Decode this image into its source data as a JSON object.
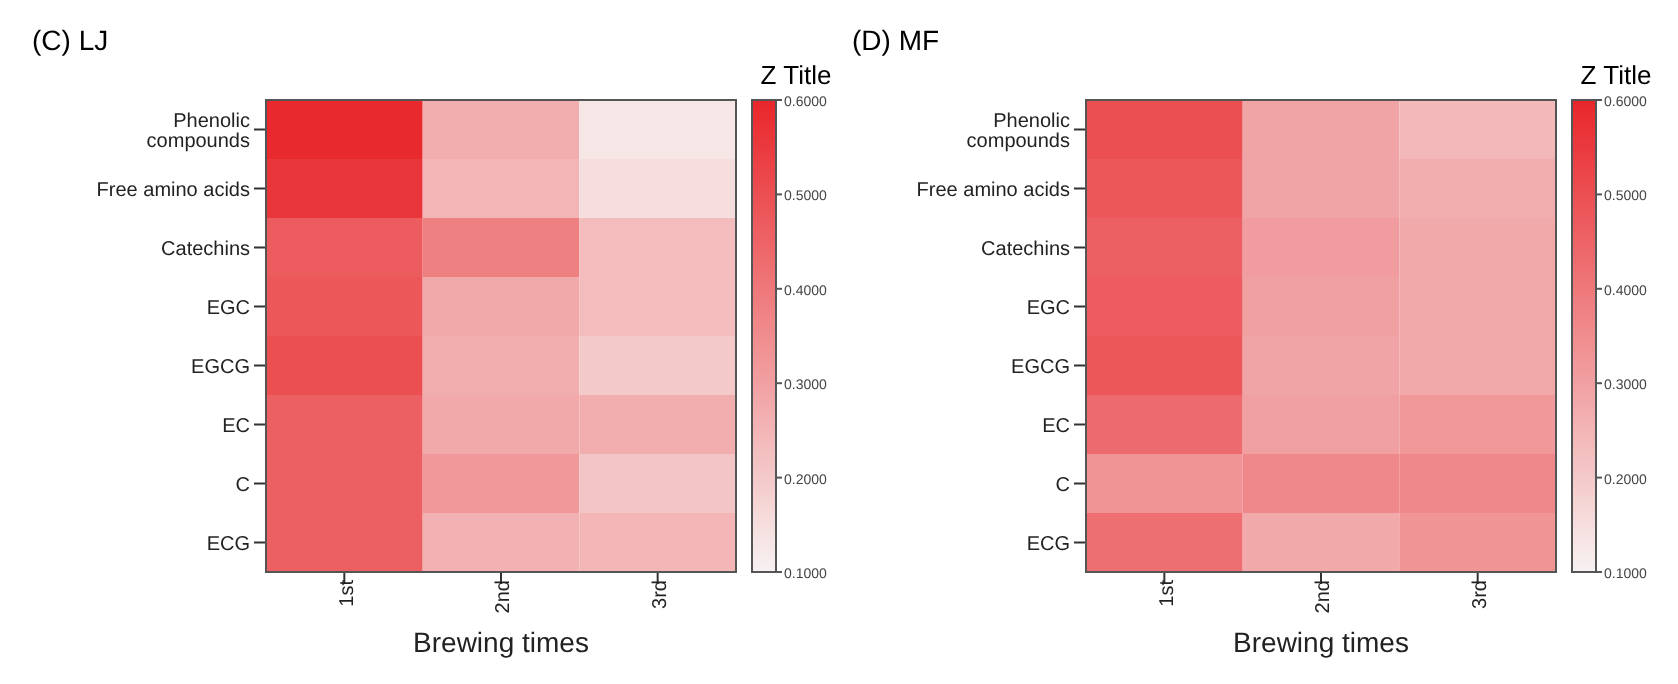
{
  "chart_data": [
    {
      "type": "heatmap",
      "title": "(C) LJ",
      "xlabel": "Brewing times",
      "clabel": "Z Title",
      "categories": [
        "1st",
        "2nd",
        "3rd"
      ],
      "y_categories": [
        "Phenolic compounds",
        "Free amino acids",
        "Catechins",
        "EGC",
        "EGCG",
        "EC",
        "C",
        "ECG"
      ],
      "cells": [
        [
          0.59,
          0.27,
          0.13
        ],
        [
          0.56,
          0.25,
          0.15
        ],
        [
          0.47,
          0.38,
          0.23
        ],
        [
          0.48,
          0.28,
          0.23
        ],
        [
          0.5,
          0.27,
          0.2
        ],
        [
          0.46,
          0.28,
          0.27
        ],
        [
          0.46,
          0.32,
          0.21
        ],
        [
          0.46,
          0.26,
          0.25
        ]
      ],
      "clim": [
        0.1,
        0.6
      ],
      "cticks": [
        {
          "value": 0.1,
          "label": "0.1000"
        },
        {
          "value": 0.2,
          "label": "0.2000"
        },
        {
          "value": 0.3,
          "label": "0.3000"
        },
        {
          "value": 0.4,
          "label": "0.4000"
        },
        {
          "value": 0.5,
          "label": "0.5000"
        },
        {
          "value": 0.6,
          "label": "0.6000"
        }
      ]
    },
    {
      "type": "heatmap",
      "title": "(D) MF",
      "xlabel": "Brewing times",
      "clabel": "Z Title",
      "categories": [
        "1st",
        "2nd",
        "3rd"
      ],
      "y_categories": [
        "Phenolic compounds",
        "Free amino acids",
        "Catechins",
        "EGC",
        "EGCG",
        "EC",
        "C",
        "ECG"
      ],
      "cells": [
        [
          0.5,
          0.29,
          0.24
        ],
        [
          0.48,
          0.29,
          0.27
        ],
        [
          0.46,
          0.31,
          0.28
        ],
        [
          0.47,
          0.3,
          0.28
        ],
        [
          0.48,
          0.29,
          0.28
        ],
        [
          0.43,
          0.3,
          0.32
        ],
        [
          0.33,
          0.36,
          0.36
        ],
        [
          0.42,
          0.28,
          0.33
        ]
      ],
      "clim": [
        0.1,
        0.6
      ],
      "cticks": [
        {
          "value": 0.1,
          "label": "0.1000"
        },
        {
          "value": 0.2,
          "label": "0.2000"
        },
        {
          "value": 0.3,
          "label": "0.3000"
        },
        {
          "value": 0.4,
          "label": "0.4000"
        },
        {
          "value": 0.5,
          "label": "0.5000"
        },
        {
          "value": 0.6,
          "label": "0.6000"
        }
      ]
    }
  ]
}
